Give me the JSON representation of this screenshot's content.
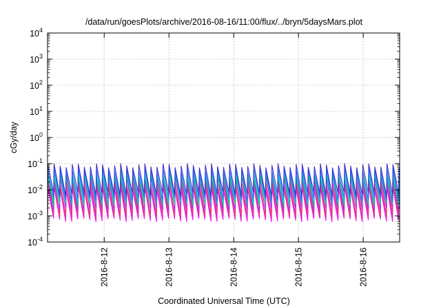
{
  "chart_data": {
    "type": "line",
    "title": "/data/run/goesPlots/archive/2016-08-16/11:00/flux/../bryn/5daysMars.plot",
    "xlabel": "Coordinated Universal Time (UTC)",
    "ylabel": "cGy/day",
    "yscale": "log",
    "ylim": [
      0.0001,
      10000
    ],
    "xlim": [
      "2016-08-11T03:00",
      "2016-08-16T13:30"
    ],
    "x_ticks": [
      "2016-8-12",
      "2016-8-13",
      "2016-8-14",
      "2016-8-15",
      "2016-8-16"
    ],
    "y_ticks": [
      {
        "base": "10",
        "exp": "-4"
      },
      {
        "base": "10",
        "exp": "-3"
      },
      {
        "base": "10",
        "exp": "-2"
      },
      {
        "base": "10",
        "exp": "-1"
      },
      {
        "base": "10",
        "exp": "0"
      },
      {
        "base": "10",
        "exp": "1"
      },
      {
        "base": "10",
        "exp": "2"
      },
      {
        "base": "10",
        "exp": "3"
      },
      {
        "base": "10",
        "exp": "4"
      }
    ],
    "grid": true,
    "legend": "none",
    "sawtooth_cycles_per_day": 10.7,
    "series": [
      {
        "color": "#ff00ff",
        "peak": 0.011,
        "trough": 0.0007
      },
      {
        "color": "#cc33aa",
        "peak": 0.015,
        "trough": 0.0009
      },
      {
        "color": "#ff3366",
        "peak": 0.02,
        "trough": 0.0012
      },
      {
        "color": "#9933ff",
        "peak": 0.03,
        "trough": 0.0018
      },
      {
        "color": "#00cc66",
        "peak": 0.035,
        "trough": 0.0028
      },
      {
        "color": "#00cccc",
        "peak": 0.045,
        "trough": 0.0035
      },
      {
        "color": "#3366ff",
        "peak": 0.06,
        "trough": 0.0045
      },
      {
        "color": "#3333cc",
        "peak": 0.085,
        "trough": 0.007
      }
    ]
  }
}
